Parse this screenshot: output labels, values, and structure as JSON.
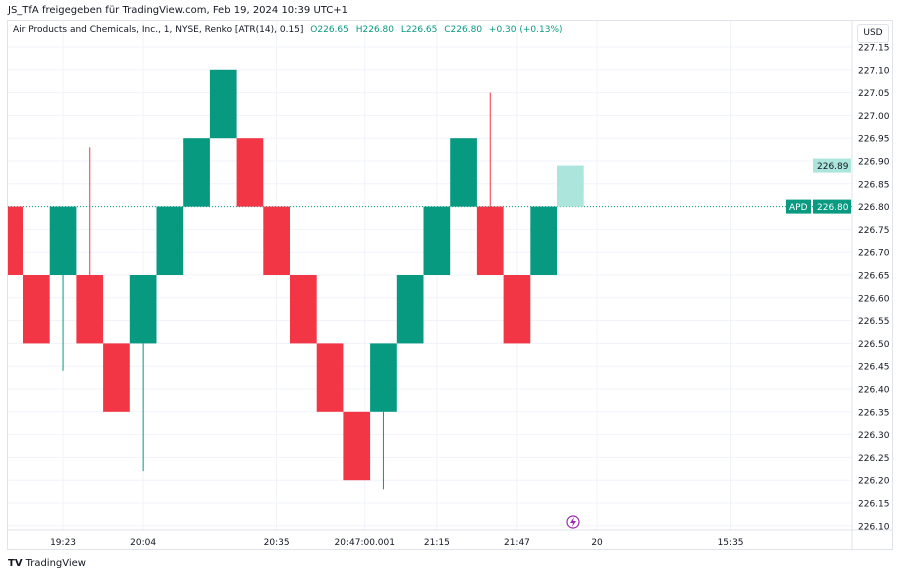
{
  "share_text": "JS_TfA freigegeben für TradingView.com, Feb 19, 2024 10:39 UTC+1",
  "legend": {
    "title": "Air Products and Chemicals, Inc., 1, NYSE, Renko [ATR(14), 0.15]",
    "open": "O226.65",
    "high": "H226.80",
    "low": "L226.65",
    "close": "C226.80",
    "change": "+0.30 (+0.13%)"
  },
  "currency": "USD",
  "symbol": "APD",
  "last_price": "226.80",
  "projected_price": "226.89",
  "colors": {
    "up": "#089981",
    "down": "#F23645",
    "projection": "#ACE5DC"
  },
  "footer_brand": "TradingView",
  "chart_data": {
    "type": "renko",
    "brick_size": 0.15,
    "ylim": [
      226.08,
      227.17
    ],
    "y_ticks": [
      "227.15",
      "227.10",
      "227.05",
      "227.00",
      "226.95",
      "226.90",
      "226.85",
      "226.80",
      "226.75",
      "226.70",
      "226.65",
      "226.60",
      "226.55",
      "226.50",
      "226.45",
      "226.40",
      "226.35",
      "226.30",
      "226.25",
      "226.20",
      "226.15",
      "226.10"
    ],
    "x_ticks": [
      {
        "label": "19:23",
        "slot": 2.5
      },
      {
        "label": "20:04",
        "slot": 5.5
      },
      {
        "label": "20:35",
        "slot": 10.5
      },
      {
        "label": "20:47:00.001",
        "slot": 13.8
      },
      {
        "label": "21:15",
        "slot": 16.5
      },
      {
        "label": "21:47",
        "slot": 19.5
      },
      {
        "label": "20",
        "slot": 22.5
      },
      {
        "label": "15:35",
        "slot": 27.5
      }
    ],
    "bricks": [
      {
        "dir": "down",
        "open": 226.8,
        "close": 226.65
      },
      {
        "dir": "down",
        "open": 226.65,
        "close": 226.5
      },
      {
        "dir": "up",
        "open": 226.65,
        "close": 226.8,
        "wick_low": 226.44
      },
      {
        "dir": "down",
        "open": 226.65,
        "close": 226.5,
        "wick_high": 226.93
      },
      {
        "dir": "down",
        "open": 226.5,
        "close": 226.35
      },
      {
        "dir": "up",
        "open": 226.5,
        "close": 226.65,
        "wick_low": 226.22
      },
      {
        "dir": "up",
        "open": 226.65,
        "close": 226.8
      },
      {
        "dir": "up",
        "open": 226.8,
        "close": 226.95
      },
      {
        "dir": "up",
        "open": 226.95,
        "close": 227.1
      },
      {
        "dir": "down",
        "open": 226.95,
        "close": 226.8
      },
      {
        "dir": "down",
        "open": 226.8,
        "close": 226.65
      },
      {
        "dir": "down",
        "open": 226.65,
        "close": 226.5
      },
      {
        "dir": "down",
        "open": 226.5,
        "close": 226.35
      },
      {
        "dir": "down",
        "open": 226.35,
        "close": 226.2
      },
      {
        "dir": "up",
        "open": 226.35,
        "close": 226.5,
        "wick_low": 226.18
      },
      {
        "dir": "up",
        "open": 226.5,
        "close": 226.65
      },
      {
        "dir": "up",
        "open": 226.65,
        "close": 226.8
      },
      {
        "dir": "up",
        "open": 226.8,
        "close": 226.95
      },
      {
        "dir": "down",
        "open": 226.8,
        "close": 226.65,
        "wick_high": 227.05
      },
      {
        "dir": "down",
        "open": 226.65,
        "close": 226.5
      },
      {
        "dir": "up",
        "open": 226.65,
        "close": 226.8
      },
      {
        "dir": "projection",
        "open": 226.8,
        "close": 226.89
      }
    ]
  }
}
